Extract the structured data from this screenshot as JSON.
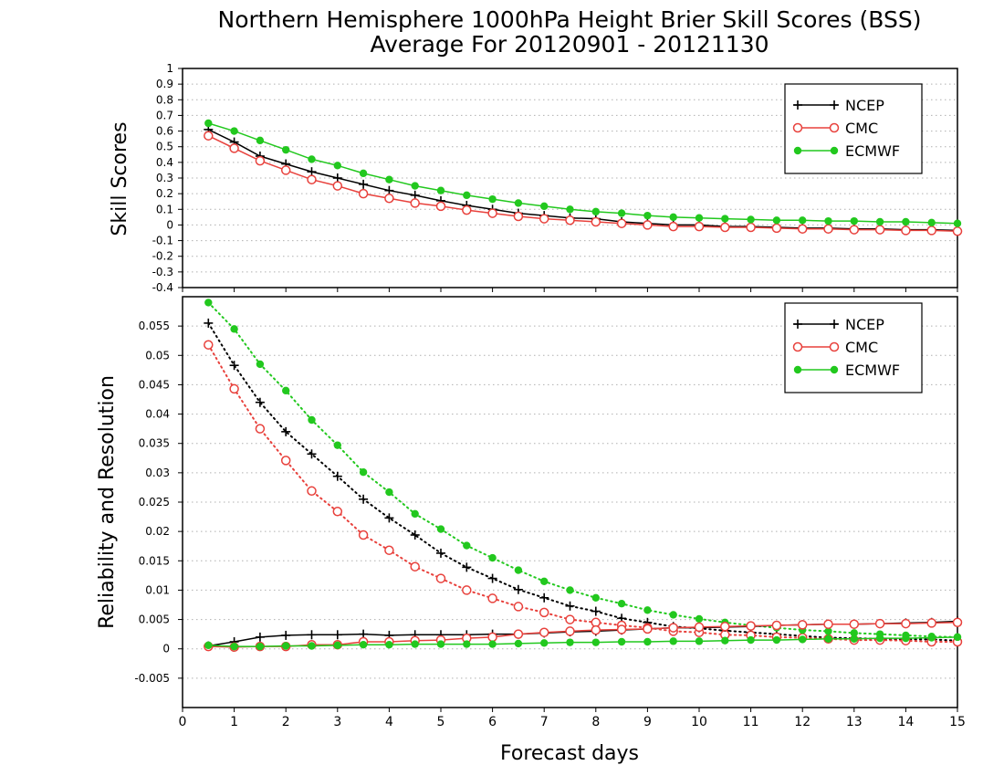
{
  "title_line1": "Northern Hemisphere 1000hPa Height Brier Skill Scores (BSS)",
  "title_line2": "Average For 20120901 - 20121130",
  "xlabel": "Forecast days",
  "colors": {
    "NCEP": "#000000",
    "CMC": "#e8413c",
    "ECMWF": "#22c81e"
  },
  "chart_data": [
    {
      "type": "line",
      "ylabel": "Skill Scores",
      "xlim": [
        0,
        15
      ],
      "ylim": [
        -0.4,
        1
      ],
      "x_ticks": [
        "0",
        "1",
        "2",
        "3",
        "4",
        "5",
        "6",
        "7",
        "8",
        "9",
        "10",
        "11",
        "12",
        "13",
        "14",
        "15"
      ],
      "y_ticks": [
        "-0.4",
        "-0.3",
        "-0.2",
        "-0.1",
        "0",
        "0.1",
        "0.2",
        "0.3",
        "0.4",
        "0.5",
        "0.6",
        "0.7",
        "0.8",
        "0.9",
        "1"
      ],
      "grid": true,
      "legend": {
        "position": "top-right",
        "entries": [
          "NCEP",
          "CMC",
          "ECMWF"
        ]
      },
      "x": [
        0.5,
        1,
        1.5,
        2,
        2.5,
        3,
        3.5,
        4,
        4.5,
        5,
        5.5,
        6,
        6.5,
        7,
        7.5,
        8,
        8.5,
        9,
        9.5,
        10,
        10.5,
        11,
        11.5,
        12,
        12.5,
        13,
        13.5,
        14,
        14.5,
        15
      ],
      "series": [
        {
          "name": "NCEP",
          "style": "solid",
          "marker": "plus",
          "values": [
            0.61,
            0.53,
            0.44,
            0.39,
            0.34,
            0.3,
            0.26,
            0.22,
            0.19,
            0.155,
            0.125,
            0.1,
            0.075,
            0.06,
            0.045,
            0.04,
            0.02,
            0.01,
            0.0,
            0.0,
            -0.01,
            -0.01,
            -0.015,
            -0.02,
            -0.02,
            -0.025,
            -0.025,
            -0.03,
            -0.03,
            -0.035
          ]
        },
        {
          "name": "CMC",
          "style": "solid",
          "marker": "circle",
          "values": [
            0.57,
            0.49,
            0.41,
            0.35,
            0.29,
            0.25,
            0.2,
            0.17,
            0.14,
            0.12,
            0.095,
            0.075,
            0.055,
            0.04,
            0.03,
            0.02,
            0.01,
            0.0,
            -0.01,
            -0.01,
            -0.015,
            -0.015,
            -0.02,
            -0.025,
            -0.025,
            -0.03,
            -0.03,
            -0.035,
            -0.035,
            -0.04
          ]
        },
        {
          "name": "ECMWF",
          "style": "solid",
          "marker": "dot",
          "values": [
            0.65,
            0.6,
            0.54,
            0.48,
            0.42,
            0.38,
            0.33,
            0.29,
            0.25,
            0.22,
            0.19,
            0.165,
            0.14,
            0.12,
            0.1,
            0.085,
            0.075,
            0.06,
            0.05,
            0.045,
            0.04,
            0.035,
            0.03,
            0.03,
            0.025,
            0.025,
            0.02,
            0.02,
            0.015,
            0.01
          ]
        }
      ]
    },
    {
      "type": "line",
      "ylabel": "Reliability and Resolution",
      "xlim": [
        0,
        15
      ],
      "ylim": [
        -0.01,
        0.06
      ],
      "x_ticks": [
        "0",
        "1",
        "2",
        "3",
        "4",
        "5",
        "6",
        "7",
        "8",
        "9",
        "10",
        "11",
        "12",
        "13",
        "14",
        "15"
      ],
      "y_ticks": [
        "-0.005",
        "0",
        "0.005",
        "0.01",
        "0.015",
        "0.02",
        "0.025",
        "0.03",
        "0.035",
        "0.04",
        "0.045",
        "0.05",
        "0.055"
      ],
      "grid": true,
      "legend": {
        "position": "top-right",
        "entries": [
          "NCEP",
          "CMC",
          "ECMWF"
        ]
      },
      "x": [
        0.5,
        1,
        1.5,
        2,
        2.5,
        3,
        3.5,
        4,
        4.5,
        5,
        5.5,
        6,
        6.5,
        7,
        7.5,
        8,
        8.5,
        9,
        9.5,
        10,
        10.5,
        11,
        11.5,
        12,
        12.5,
        13,
        13.5,
        14,
        14.5,
        15
      ],
      "series": [
        {
          "name": "NCEP",
          "component": "resolution",
          "style": "dotted",
          "marker": "plus",
          "values": [
            0.0555,
            0.0483,
            0.042,
            0.037,
            0.0332,
            0.0294,
            0.0255,
            0.0223,
            0.0194,
            0.0163,
            0.0139,
            0.012,
            0.0101,
            0.0087,
            0.0073,
            0.0064,
            0.0052,
            0.0045,
            0.0038,
            0.0035,
            0.0031,
            0.0028,
            0.0025,
            0.0022,
            0.0019,
            0.0018,
            0.0017,
            0.0016,
            0.0016,
            0.0014
          ]
        },
        {
          "name": "CMC",
          "component": "resolution",
          "style": "dotted",
          "marker": "circle",
          "values": [
            0.0518,
            0.0443,
            0.0375,
            0.0321,
            0.0269,
            0.0234,
            0.0194,
            0.0168,
            0.014,
            0.012,
            0.01,
            0.0086,
            0.0072,
            0.0062,
            0.005,
            0.0045,
            0.004,
            0.0036,
            0.003,
            0.0028,
            0.0024,
            0.0023,
            0.002,
            0.0019,
            0.0017,
            0.0015,
            0.0015,
            0.0014,
            0.0012,
            0.0012
          ]
        },
        {
          "name": "ECMWF",
          "component": "resolution",
          "style": "dotted",
          "marker": "dot",
          "values": [
            0.059,
            0.0545,
            0.0485,
            0.044,
            0.039,
            0.0347,
            0.0301,
            0.0267,
            0.023,
            0.0204,
            0.0176,
            0.0155,
            0.0134,
            0.0115,
            0.01,
            0.0087,
            0.0077,
            0.0066,
            0.0058,
            0.0051,
            0.0045,
            0.004,
            0.0036,
            0.0032,
            0.003,
            0.0027,
            0.0025,
            0.0023,
            0.0021,
            0.002
          ]
        },
        {
          "name": "NCEP",
          "component": "reliability",
          "style": "solid",
          "marker": "plus",
          "values": [
            0.0005,
            0.0012,
            0.002,
            0.0023,
            0.0024,
            0.0024,
            0.0025,
            0.0023,
            0.0024,
            0.0024,
            0.0024,
            0.0025,
            0.0025,
            0.0027,
            0.0029,
            0.003,
            0.0032,
            0.0034,
            0.0036,
            0.0036,
            0.0037,
            0.0038,
            0.004,
            0.0041,
            0.0042,
            0.0042,
            0.0043,
            0.0044,
            0.0045,
            0.0047
          ]
        },
        {
          "name": "CMC",
          "component": "reliability",
          "style": "solid",
          "marker": "circle",
          "values": [
            0.0004,
            0.0003,
            0.0004,
            0.0004,
            0.0007,
            0.0007,
            0.0012,
            0.0012,
            0.0014,
            0.0015,
            0.0018,
            0.002,
            0.0025,
            0.0028,
            0.003,
            0.0032,
            0.0033,
            0.0034,
            0.0036,
            0.0037,
            0.0038,
            0.0039,
            0.004,
            0.0041,
            0.0042,
            0.0042,
            0.0043,
            0.0043,
            0.0044,
            0.0045
          ]
        },
        {
          "name": "ECMWF",
          "component": "reliability",
          "style": "solid",
          "marker": "dot",
          "values": [
            0.0006,
            0.0004,
            0.0004,
            0.0005,
            0.0005,
            0.0006,
            0.0007,
            0.0007,
            0.0008,
            0.0008,
            0.0008,
            0.0008,
            0.0009,
            0.001,
            0.0011,
            0.0011,
            0.0012,
            0.0012,
            0.0013,
            0.0013,
            0.0014,
            0.0015,
            0.0015,
            0.0016,
            0.0017,
            0.0017,
            0.0018,
            0.0018,
            0.0019,
            0.002
          ]
        }
      ]
    }
  ]
}
